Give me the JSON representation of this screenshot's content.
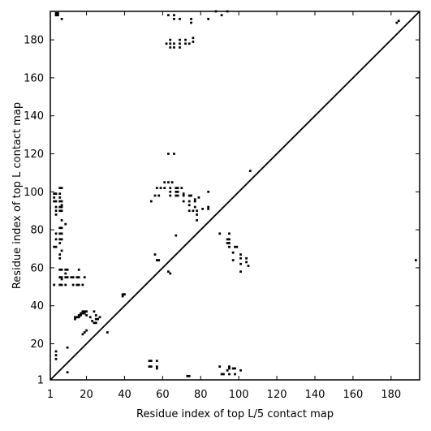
{
  "chart_data": {
    "type": "scatter",
    "title": "",
    "xlabel": "Residue index of top L/5 contact map",
    "ylabel": "Residue index of top L contact map",
    "xlim": [
      1,
      195
    ],
    "ylim": [
      1,
      195
    ],
    "xticks": [
      1,
      20,
      40,
      60,
      80,
      100,
      120,
      140,
      160,
      180
    ],
    "yticks": [
      1,
      20,
      40,
      60,
      80,
      100,
      120,
      140,
      160,
      180
    ],
    "grid": false,
    "marker_color": "#000000",
    "diagonal": {
      "from": [
        1,
        1
      ],
      "to": [
        195,
        195
      ]
    },
    "series": [
      {
        "region": "upper-left (top L contacts)",
        "points": [
          [
            4,
            194
          ],
          [
            5,
            194
          ],
          [
            4,
            193
          ],
          [
            5,
            193
          ],
          [
            7,
            191
          ],
          [
            63,
            193
          ],
          [
            66,
            193
          ],
          [
            66,
            191
          ],
          [
            69,
            191
          ],
          [
            75,
            191
          ],
          [
            75,
            189
          ],
          [
            84,
            191
          ],
          [
            88,
            195
          ],
          [
            91,
            193
          ],
          [
            94,
            195
          ],
          [
            62,
            178
          ],
          [
            64,
            180
          ],
          [
            64,
            178
          ],
          [
            64,
            176
          ],
          [
            66,
            178
          ],
          [
            66,
            176
          ],
          [
            69,
            180
          ],
          [
            69,
            178
          ],
          [
            69,
            176
          ],
          [
            72,
            180
          ],
          [
            72,
            178
          ],
          [
            74,
            178
          ],
          [
            76,
            181
          ],
          [
            76,
            179
          ],
          [
            183,
            189
          ],
          [
            184,
            190
          ],
          [
            63,
            120
          ],
          [
            66,
            120
          ],
          [
            106,
            111
          ],
          [
            61,
            105
          ],
          [
            63,
            105
          ],
          [
            65,
            105
          ],
          [
            57,
            102
          ],
          [
            59,
            102
          ],
          [
            61,
            102
          ],
          [
            64,
            102
          ],
          [
            67,
            102
          ],
          [
            68,
            102
          ],
          [
            70,
            102
          ],
          [
            56,
            98
          ],
          [
            58,
            98
          ],
          [
            64,
            100
          ],
          [
            64,
            98
          ],
          [
            67,
            100
          ],
          [
            67,
            98
          ],
          [
            68,
            100
          ],
          [
            68,
            98
          ],
          [
            71,
            99
          ],
          [
            71,
            98
          ],
          [
            74,
            98
          ],
          [
            75,
            98
          ],
          [
            77,
            96
          ],
          [
            79,
            97
          ],
          [
            84,
            100
          ],
          [
            54,
            95
          ],
          [
            71,
            95
          ],
          [
            74,
            95
          ],
          [
            77,
            95
          ],
          [
            74,
            93
          ],
          [
            77,
            92
          ],
          [
            81,
            91
          ],
          [
            84,
            91
          ],
          [
            84,
            92
          ],
          [
            74,
            90
          ],
          [
            76,
            90
          ],
          [
            78,
            90
          ],
          [
            78,
            88
          ],
          [
            78,
            85
          ],
          [
            67,
            77
          ],
          [
            90,
            78
          ],
          [
            95,
            78
          ],
          [
            94,
            75
          ],
          [
            95,
            75
          ],
          [
            94,
            73
          ],
          [
            95,
            73
          ],
          [
            95,
            71
          ],
          [
            98,
            71
          ],
          [
            99,
            71
          ],
          [
            97,
            68
          ],
          [
            97,
            64
          ],
          [
            101,
            67
          ],
          [
            101,
            65
          ],
          [
            101,
            62
          ],
          [
            101,
            58
          ],
          [
            104,
            63
          ],
          [
            104,
            65
          ],
          [
            105,
            61
          ],
          [
            193,
            64
          ],
          [
            56,
            67
          ],
          [
            57,
            64
          ],
          [
            58,
            64
          ],
          [
            63,
            58
          ],
          [
            64,
            57
          ],
          [
            3,
            99
          ],
          [
            4,
            99
          ],
          [
            6,
            99
          ],
          [
            3,
            97
          ],
          [
            6,
            97
          ],
          [
            3,
            95
          ],
          [
            4,
            95
          ],
          [
            6,
            95
          ],
          [
            7,
            95
          ],
          [
            7,
            93
          ],
          [
            4,
            92
          ],
          [
            6,
            92
          ],
          [
            7,
            92
          ],
          [
            4,
            90
          ],
          [
            6,
            90
          ],
          [
            7,
            90
          ],
          [
            6,
            102
          ],
          [
            7,
            102
          ],
          [
            4,
            88
          ],
          [
            7,
            85
          ],
          [
            9,
            83
          ],
          [
            6,
            81
          ],
          [
            7,
            81
          ],
          [
            4,
            78
          ],
          [
            6,
            78
          ],
          [
            7,
            78
          ],
          [
            4,
            75
          ],
          [
            6,
            75
          ],
          [
            7,
            75
          ],
          [
            6,
            73
          ],
          [
            3,
            71
          ],
          [
            4,
            71
          ],
          [
            7,
            69
          ],
          [
            6,
            67
          ],
          [
            6,
            65
          ],
          [
            6,
            59
          ],
          [
            7,
            59
          ],
          [
            9,
            59
          ],
          [
            10,
            59
          ],
          [
            9,
            57
          ],
          [
            6,
            55
          ],
          [
            7,
            55
          ],
          [
            9,
            55
          ],
          [
            10,
            55
          ],
          [
            12,
            55
          ],
          [
            13,
            55
          ],
          [
            15,
            55
          ],
          [
            16,
            55
          ],
          [
            19,
            55
          ],
          [
            7,
            54
          ],
          [
            16,
            59
          ],
          [
            3,
            51
          ],
          [
            6,
            51
          ],
          [
            7,
            51
          ],
          [
            9,
            51
          ],
          [
            13,
            51
          ],
          [
            15,
            51
          ],
          [
            16,
            51
          ],
          [
            18,
            51
          ],
          [
            4,
            16
          ],
          [
            4,
            14
          ],
          [
            4,
            12
          ],
          [
            10,
            18
          ],
          [
            10,
            5
          ],
          [
            39,
            46
          ],
          [
            40,
            46
          ],
          [
            39,
            45
          ],
          [
            18,
            37
          ],
          [
            19,
            37
          ],
          [
            20,
            37
          ],
          [
            17,
            36
          ],
          [
            18,
            36
          ],
          [
            19,
            36
          ],
          [
            16,
            35
          ],
          [
            17,
            35
          ],
          [
            14,
            34
          ],
          [
            15,
            34
          ],
          [
            16,
            34
          ],
          [
            14,
            33
          ],
          [
            20,
            35
          ],
          [
            22,
            34
          ],
          [
            23,
            32
          ],
          [
            24,
            37
          ],
          [
            25,
            35
          ],
          [
            25,
            33
          ],
          [
            26,
            33
          ],
          [
            27,
            34
          ],
          [
            24,
            31
          ],
          [
            25,
            31
          ],
          [
            20,
            27
          ],
          [
            19,
            26
          ],
          [
            18,
            25
          ],
          [
            31,
            26
          ]
        ]
      },
      {
        "region": "lower-right (top L/5 contacts)",
        "points": [
          [
            53,
            11
          ],
          [
            54,
            11
          ],
          [
            57,
            11
          ],
          [
            53,
            8
          ],
          [
            54,
            8
          ],
          [
            57,
            8
          ],
          [
            57,
            7
          ],
          [
            73,
            3
          ],
          [
            74,
            3
          ],
          [
            90,
            8
          ],
          [
            91,
            4
          ],
          [
            92,
            4
          ],
          [
            94,
            6
          ],
          [
            95,
            8
          ],
          [
            95,
            7
          ],
          [
            95,
            4
          ],
          [
            97,
            7
          ],
          [
            98,
            7
          ],
          [
            98,
            4
          ],
          [
            101,
            6
          ]
        ]
      }
    ]
  }
}
